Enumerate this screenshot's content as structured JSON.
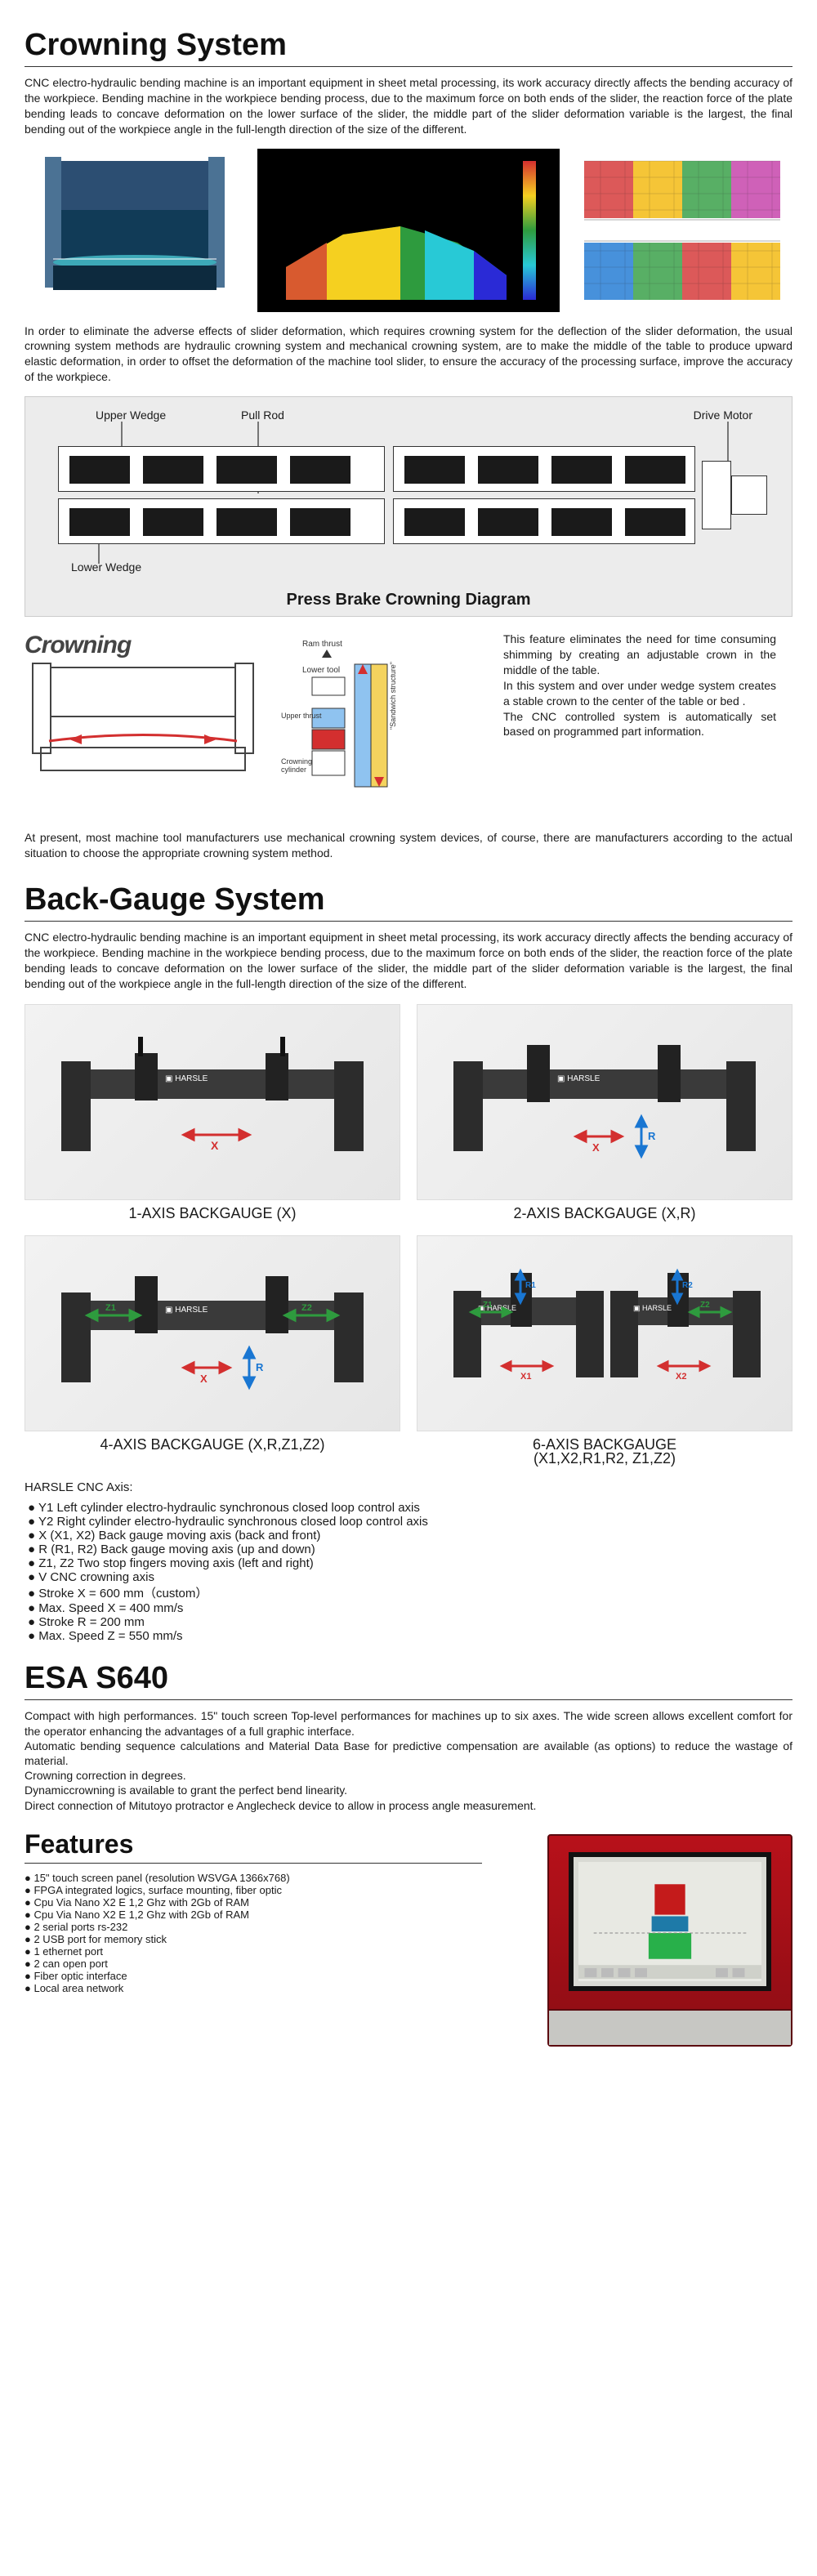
{
  "sections": {
    "crowning": {
      "title": "Crowning System",
      "p1": "CNC electro-hydraulic bending machine is an important equipment in sheet metal processing, its work accuracy directly affects the bending accuracy of the workpiece. Bending machine in the workpiece bending process, due to the maximum force on both ends of the slider, the reaction force of the plate bending leads to concave deformation on the lower surface of the slider, the middle part of the slider deformation variable is the largest, the final bending out of the workpiece angle in the full-length direction of the size of the different.",
      "p2": "In order to eliminate the adverse effects of slider deformation, which requires crowning system for the deflection of the slider deformation, the usual crowning system methods are hydraulic crowning system and mechanical crowning system, are to make the middle of the table to produce upward elastic deformation, in order to offset the deformation of the machine tool slider, to ensure the accuracy of the processing surface, improve the accuracy of the workpiece.",
      "diagram_labels": {
        "upper_wedge": "Upper Wedge",
        "pull_rod": "Pull Rod",
        "drive_motor": "Drive Motor",
        "lower_wedge": "Lower Wedge",
        "title": "Press Brake Crowning Diagram"
      },
      "crowning_word": "Crowning",
      "side_p1": "This feature eliminates the need for time consuming shimming by creating an adjustable crown in the middle of the table.",
      "side_p2": "In this system and over under wedge system creates a stable crown to the center of the table or bed .",
      "side_p3": "The CNC controlled system is automatically set based on programmed part information.",
      "p3": "At present, most machine tool manufacturers use mechanical crowning system devices, of course, there are manufacturers according to the actual situation to choose the appropriate crowning system method."
    },
    "backgauge": {
      "title": "Back-Gauge System",
      "p1": "CNC electro-hydraulic bending machine is an important equipment in sheet metal processing, its work accuracy directly affects the bending accuracy of the workpiece. Bending machine in the workpiece bending process, due to the maximum force on both ends of the slider, the reaction force of the plate bending leads to concave deformation on the lower surface of the slider, the middle part of the slider deformation variable is the largest, the final bending out of the workpiece angle in the full-length direction of the size of the different.",
      "captions": {
        "c1": "1-AXIS BACKGAUGE (X)",
        "c2": "2-AXIS BACKGAUGE (X,R)",
        "c3": "4-AXIS BACKGAUGE (X,R,Z1,Z2)",
        "c4a": "6-AXIS BACKGAUGE",
        "c4b": "(X1,X2,R1,R2, Z1,Z2)"
      },
      "axis_title": "HARSLE CNC Axis:",
      "axis_items": [
        "Y1 Left cylinder electro-hydraulic synchronous closed loop control axis",
        "Y2 Right cylinder electro-hydraulic synchronous closed loop control axis",
        "X (X1, X2) Back gauge moving axis (back and front)",
        "R (R1, R2) Back gauge moving axis (up and down)",
        "Z1, Z2 Two stop fingers moving axis (left and right)",
        "V CNC crowning axis",
        "Stroke X = 600 mm（custom）",
        "Max. Speed X = 400 mm/s",
        "Stroke R = 200 mm",
        "Max. Speed Z = 550 mm/s"
      ]
    },
    "esa": {
      "title": "ESA S640",
      "p1": "Compact with high performances. 15\" touch screen Top-level performances for machines up to six axes. The wide screen allows excellent comfort for the operator enhancing the advantages of a full graphic interface.",
      "p2": "Automatic bending sequence calculations and Material Data Base for predictive compensation are available (as options) to reduce the wastage of material.",
      "p3": "Crowning correction in degrees.",
      "p4": "Dynamiccrowning is available to grant the perfect bend linearity.",
      "p5": "Direct connection of Mitutoyo protractor e Anglecheck device to allow in process angle measurement.",
      "features_title": "Features",
      "features": [
        "15\" touch screen panel (resolution WSVGA 1366x768)",
        "FPGA integrated logics, surface mounting, fiber optic",
        "Cpu Via Nano X2 E 1,2 Ghz with 2Gb of RAM",
        "Cpu Via Nano X2 E 1,2 Ghz with 2Gb of RAM",
        "2 serial ports rs-232",
        "2 USB port for memory stick",
        "1 ethernet port",
        "2 can open port",
        "Fiber optic interface",
        "Local area network"
      ]
    }
  },
  "colors": {
    "brand": "#113b57",
    "accent_red": "#d32f2f",
    "accent_blue": "#1976d2",
    "accent_green": "#2e9b3e",
    "dark": "#2c2c2c",
    "diagram_bg": "#ececec",
    "controller_red": "#b8111a"
  }
}
